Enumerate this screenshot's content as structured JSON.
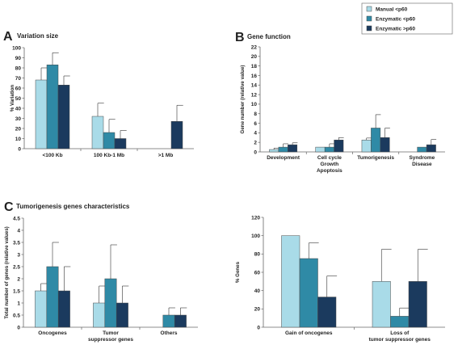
{
  "colors": {
    "manual_lt60": "#a9dbe8",
    "enzymatic_lt60": "#2f8aa6",
    "enzymatic_gt60": "#1b3a5e"
  },
  "legend": [
    {
      "label": "Manual <p60",
      "color": "#a9dbe8"
    },
    {
      "label": "Enzymatic <p60",
      "color": "#2f8aa6"
    },
    {
      "label": "Enzymatic >p60",
      "color": "#1b3a5e"
    }
  ],
  "chart_data": [
    {
      "id": "A",
      "letter": "A",
      "type": "bar",
      "title": "Variation size",
      "xlabel": "",
      "ylabel": "% Variation",
      "ylim": [
        0,
        100
      ],
      "yticks": [
        0,
        10,
        20,
        30,
        40,
        50,
        60,
        70,
        80,
        90,
        100
      ],
      "grid": false,
      "categories": [
        "<100 Kb",
        "100 Kb-1 Mb",
        ">1 Mb"
      ],
      "series": [
        {
          "name": "Manual <p60",
          "values": [
            68,
            32,
            null
          ],
          "errors": [
            12,
            13,
            null
          ]
        },
        {
          "name": "Enzymatic <p60",
          "values": [
            83,
            16,
            null
          ],
          "errors": [
            12,
            13,
            null
          ]
        },
        {
          "name": "Enzymatic >p60",
          "values": [
            63,
            10,
            27
          ],
          "errors": [
            9,
            8,
            16
          ]
        }
      ]
    },
    {
      "id": "B",
      "letter": "B",
      "type": "bar",
      "title": "Gene function",
      "xlabel": "",
      "ylabel": "Gene number (relative value)",
      "ylim": [
        0,
        22
      ],
      "yticks": [
        0,
        2,
        4,
        6,
        8,
        10,
        12,
        14,
        16,
        18,
        20,
        22
      ],
      "grid": false,
      "categories": [
        [
          "Development"
        ],
        [
          "Cell cycle",
          "Growth",
          "Apoptosis"
        ],
        [
          "Tumorigenesis"
        ],
        [
          "Syndrome",
          "Disease"
        ]
      ],
      "series": [
        {
          "name": "Manual <p60",
          "values": [
            0.5,
            1,
            2.5,
            null
          ],
          "errors": [
            0.3,
            0,
            0.4,
            null
          ]
        },
        {
          "name": "Enzymatic <p60",
          "values": [
            1,
            1,
            5,
            1
          ],
          "errors": [
            0.7,
            0.7,
            2.8,
            0
          ]
        },
        {
          "name": "Enzymatic >p60",
          "values": [
            1.5,
            2.5,
            3,
            1.5
          ],
          "errors": [
            0.4,
            0.5,
            2,
            1.1
          ]
        }
      ]
    },
    {
      "id": "C1",
      "letter": "C",
      "type": "bar",
      "title": "Tumorigenesis genes characteristics",
      "xlabel": "",
      "ylabel": "Total number of genes (relative values)",
      "ylim": [
        0,
        4.5
      ],
      "yticks": [
        0,
        0.5,
        1,
        1.5,
        2,
        2.5,
        3,
        3.5,
        4,
        4.5
      ],
      "grid": false,
      "categories": [
        [
          "Oncogenes"
        ],
        [
          "Tumor",
          "suppressor genes"
        ],
        [
          "Others"
        ]
      ],
      "series": [
        {
          "name": "Manual <p60",
          "values": [
            1.5,
            1,
            null
          ],
          "errors": [
            0.3,
            0.7,
            null
          ]
        },
        {
          "name": "Enzymatic <p60",
          "values": [
            2.5,
            2,
            0.5
          ],
          "errors": [
            1,
            1.4,
            0.3
          ]
        },
        {
          "name": "Enzymatic >p60",
          "values": [
            1.5,
            1,
            0.5
          ],
          "errors": [
            1,
            0.7,
            0.3
          ]
        }
      ]
    },
    {
      "id": "C2",
      "letter": "",
      "type": "bar",
      "title": "",
      "xlabel": "",
      "ylabel": "% Genes",
      "ylim": [
        0,
        120
      ],
      "yticks": [
        0,
        20,
        40,
        60,
        80,
        100,
        120
      ],
      "grid": false,
      "categories": [
        [
          "Gain of oncogenes"
        ],
        [
          "Loss of",
          "tumor suppressor genes"
        ]
      ],
      "series": [
        {
          "name": "Manual <p60",
          "values": [
            100,
            50
          ],
          "errors": [
            0,
            35
          ]
        },
        {
          "name": "Enzymatic <p60",
          "values": [
            75,
            12
          ],
          "errors": [
            17,
            9
          ]
        },
        {
          "name": "Enzymatic >p60",
          "values": [
            33,
            50
          ],
          "errors": [
            23,
            35
          ]
        }
      ]
    }
  ]
}
